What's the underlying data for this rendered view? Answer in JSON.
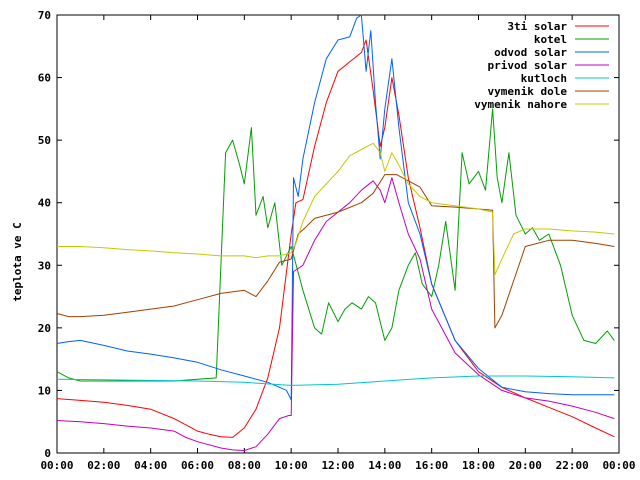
{
  "chart_data": {
    "type": "line",
    "title": "",
    "xlabel": "",
    "ylabel": "teplota ve C",
    "xlim": [
      0,
      24
    ],
    "ylim": [
      0,
      70
    ],
    "xticks": [
      0,
      2,
      4,
      6,
      8,
      10,
      12,
      14,
      16,
      18,
      20,
      22,
      24
    ],
    "xtick_labels": [
      "00:00",
      "02:00",
      "04:00",
      "06:00",
      "08:00",
      "10:00",
      "12:00",
      "14:00",
      "16:00",
      "18:00",
      "20:00",
      "22:00",
      "00:00"
    ],
    "yticks": [
      0,
      10,
      20,
      30,
      40,
      50,
      60,
      70
    ],
    "ytick_labels": [
      "0",
      "10",
      "20",
      "30",
      "40",
      "50",
      "60",
      "70"
    ],
    "grid": false,
    "legend_position": "top-right",
    "series": [
      {
        "name": "3ti solar",
        "color": "#ff0000",
        "x": [
          0,
          1,
          2,
          3,
          4,
          5,
          6,
          6.5,
          7,
          7.5,
          8,
          8.5,
          9,
          9.5,
          10,
          10.2,
          10.5,
          11,
          11.5,
          12,
          12.5,
          13,
          13.2,
          13.5,
          13.8,
          14,
          14.3,
          14.6,
          15,
          15.5,
          16,
          17,
          18,
          19,
          20,
          21,
          22,
          23,
          23.8
        ],
        "y": [
          8.7,
          8.4,
          8.1,
          7.6,
          7.0,
          5.5,
          3.5,
          3.0,
          2.6,
          2.5,
          4.0,
          7.0,
          12.0,
          20.0,
          35.0,
          40.0,
          40.5,
          49.0,
          56.0,
          61.0,
          62.5,
          64.0,
          66.0,
          58.0,
          49.0,
          52.0,
          60.0,
          54.0,
          44.0,
          36.0,
          27.0,
          18.0,
          13.0,
          10.5,
          8.8,
          7.3,
          5.8,
          4.0,
          2.6
        ]
      },
      {
        "name": "kotel",
        "color": "#00a000",
        "x": [
          0,
          0.5,
          1,
          2,
          3,
          4,
          5,
          6,
          6.8,
          7.0,
          7.2,
          7.5,
          7.8,
          8.0,
          8.3,
          8.5,
          8.8,
          9.0,
          9.3,
          9.6,
          10,
          10.5,
          11,
          11.3,
          11.6,
          12,
          12.3,
          12.6,
          13.0,
          13.3,
          13.6,
          14.0,
          14.3,
          14.6,
          15.0,
          15.3,
          15.6,
          16.0,
          16.3,
          16.6,
          17.0,
          17.3,
          17.6,
          18.0,
          18.3,
          18.6,
          18.8,
          19.0,
          19.3,
          19.6,
          20.0,
          20.3,
          20.6,
          21.0,
          21.5,
          22.0,
          22.5,
          23.0,
          23.5,
          23.8
        ],
        "y": [
          13,
          12,
          11.5,
          11.5,
          11.5,
          11.5,
          11.5,
          11.8,
          12.0,
          30.0,
          48.0,
          50.0,
          46.0,
          43.0,
          52.0,
          38.0,
          41.0,
          36.0,
          40.0,
          30.0,
          33.0,
          26.0,
          20.0,
          19.0,
          24.0,
          21.0,
          23.0,
          24.0,
          23.0,
          25.0,
          24.0,
          18.0,
          20.0,
          26.0,
          30.0,
          32.0,
          27.0,
          25.0,
          30.0,
          37.0,
          26.0,
          48.0,
          43.0,
          45.0,
          42.0,
          55.0,
          44.0,
          40.0,
          48.0,
          38.0,
          35.0,
          36.0,
          34.0,
          35.0,
          30.0,
          22.0,
          18.0,
          17.5,
          19.5,
          18.0
        ]
      },
      {
        "name": "odvod solar",
        "color": "#0060ff",
        "x": [
          0,
          0.5,
          1,
          2,
          3,
          4,
          5,
          6,
          7,
          8,
          9,
          9.5,
          9.8,
          10.0,
          10.1,
          10.3,
          10.5,
          11,
          11.5,
          12,
          12.5,
          12.8,
          13.0,
          13.2,
          13.4,
          13.6,
          13.8,
          14.0,
          14.3,
          14.6,
          15.0,
          15.5,
          16.0,
          17,
          18,
          19,
          20,
          21,
          22,
          23,
          23.8
        ],
        "y": [
          17.5,
          17.8,
          18.0,
          17.2,
          16.3,
          15.8,
          15.2,
          14.5,
          13.3,
          12.3,
          11.3,
          10.5,
          10.0,
          8.5,
          44.0,
          41.0,
          47.0,
          56.0,
          63.0,
          66.0,
          66.5,
          69.5,
          70.0,
          61.0,
          67.5,
          56.0,
          47.0,
          55.0,
          63.0,
          52.0,
          40.0,
          35.0,
          27.0,
          18.0,
          13.5,
          10.5,
          9.8,
          9.5,
          9.3,
          9.3,
          9.3
        ]
      },
      {
        "name": "privod solar",
        "color": "#c000c0",
        "x": [
          0,
          1,
          2,
          3,
          4,
          5,
          5.5,
          6,
          7,
          7.5,
          8,
          8.5,
          9,
          9.5,
          9.9,
          10.0,
          10.1,
          10.5,
          11,
          11.5,
          12,
          12.5,
          13,
          13.5,
          13.8,
          14.0,
          14.3,
          14.6,
          15.0,
          15.5,
          16,
          17,
          18,
          19,
          20,
          21,
          22,
          23,
          23.8
        ],
        "y": [
          5.2,
          5.0,
          4.7,
          4.3,
          4.0,
          3.5,
          2.5,
          1.8,
          0.8,
          0.5,
          0.4,
          1.0,
          3.0,
          5.5,
          6.0,
          6.0,
          29.0,
          30.0,
          34.0,
          37.0,
          38.5,
          40.0,
          42.0,
          43.5,
          42.0,
          40.0,
          44.0,
          40.0,
          35.0,
          31.0,
          23.0,
          16.0,
          12.5,
          10.0,
          8.8,
          8.3,
          7.5,
          6.5,
          5.5
        ]
      },
      {
        "name": "kutloch",
        "color": "#00c8c8",
        "x": [
          0,
          2,
          4,
          6,
          8,
          10,
          12,
          14,
          16,
          18,
          20,
          22,
          23.8
        ],
        "y": [
          11.8,
          11.7,
          11.6,
          11.5,
          11.3,
          10.8,
          11.0,
          11.5,
          12.0,
          12.3,
          12.3,
          12.2,
          12.0
        ]
      },
      {
        "name": "vymenik dole",
        "color": "#a04000",
        "x": [
          0,
          0.5,
          1,
          2,
          3,
          4,
          5,
          6,
          7,
          8,
          8.5,
          9,
          9.5,
          10,
          10.3,
          10.6,
          11,
          12,
          13,
          13.5,
          14,
          14.5,
          15,
          15.5,
          16,
          17,
          18,
          18.6,
          18.7,
          19.0,
          19.5,
          20,
          21,
          22,
          23,
          23.8
        ],
        "y": [
          22.3,
          21.8,
          21.8,
          22.0,
          22.5,
          23.0,
          23.5,
          24.5,
          25.5,
          26.0,
          25.0,
          27.5,
          30.5,
          31.0,
          35.0,
          36.0,
          37.5,
          38.5,
          40.0,
          41.5,
          44.5,
          44.5,
          43.5,
          42.5,
          39.5,
          39.3,
          39.0,
          38.8,
          20.0,
          22.0,
          27.5,
          33.0,
          34.0,
          34.0,
          33.5,
          33.0
        ]
      },
      {
        "name": "vymenik nahore",
        "color": "#c8c800",
        "x": [
          0,
          1,
          2,
          3,
          4,
          5,
          6,
          7,
          8,
          8.5,
          9,
          9.5,
          10,
          10.2,
          10.5,
          11,
          11.5,
          12,
          12.5,
          13,
          13.5,
          13.8,
          14.0,
          14.3,
          14.6,
          15,
          15.5,
          16,
          17,
          18,
          18.6,
          18.7,
          19.0,
          19.5,
          20,
          21,
          22,
          23,
          23.8
        ],
        "y": [
          33.0,
          33.0,
          32.8,
          32.5,
          32.3,
          32.0,
          31.8,
          31.5,
          31.5,
          31.2,
          31.5,
          31.5,
          32.0,
          33.5,
          37.0,
          41.0,
          43.0,
          45.0,
          47.5,
          48.5,
          49.5,
          48.0,
          45.0,
          48.0,
          46.0,
          43.0,
          41.0,
          40.0,
          39.5,
          39.0,
          38.5,
          28.5,
          31.0,
          35.0,
          35.8,
          35.8,
          35.5,
          35.3,
          35.0
        ]
      }
    ]
  }
}
